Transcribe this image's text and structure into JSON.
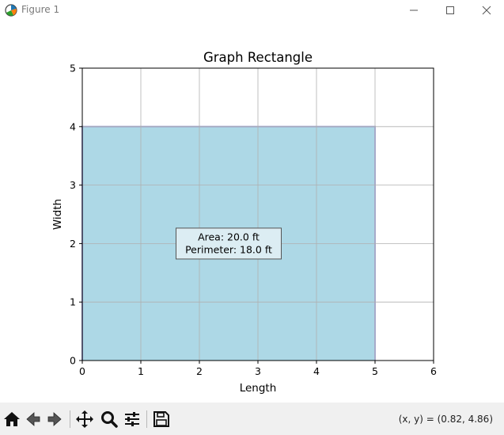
{
  "window": {
    "title": "Figure 1",
    "icons": [
      "app-icon",
      "minimize-icon",
      "maximize-icon",
      "close-icon"
    ]
  },
  "chart_data": {
    "type": "area",
    "title": "Graph Rectangle",
    "xlabel": "Length",
    "ylabel": "Width",
    "xlim": [
      0,
      6
    ],
    "ylim": [
      0,
      5
    ],
    "xticks": [
      "0",
      "1",
      "2",
      "3",
      "4",
      "5",
      "6"
    ],
    "yticks": [
      "0",
      "1",
      "2",
      "3",
      "4",
      "5"
    ],
    "grid": true,
    "rectangle": {
      "length": 5,
      "width": 4,
      "fill_color": "#add8e6",
      "edge_color": "#9fa8da"
    },
    "annotation": {
      "lines": [
        "Area: 20.0 ft",
        "Perimeter: 18.0 ft"
      ],
      "x": 2.5,
      "y": 2.0
    }
  },
  "toolbar": {
    "buttons": [
      "home-icon",
      "back-icon",
      "forward-icon",
      "pan-icon",
      "zoom-icon",
      "configure-subplots-icon",
      "save-icon"
    ],
    "coords_text": "(x, y) = (0.82, 4.86)"
  }
}
